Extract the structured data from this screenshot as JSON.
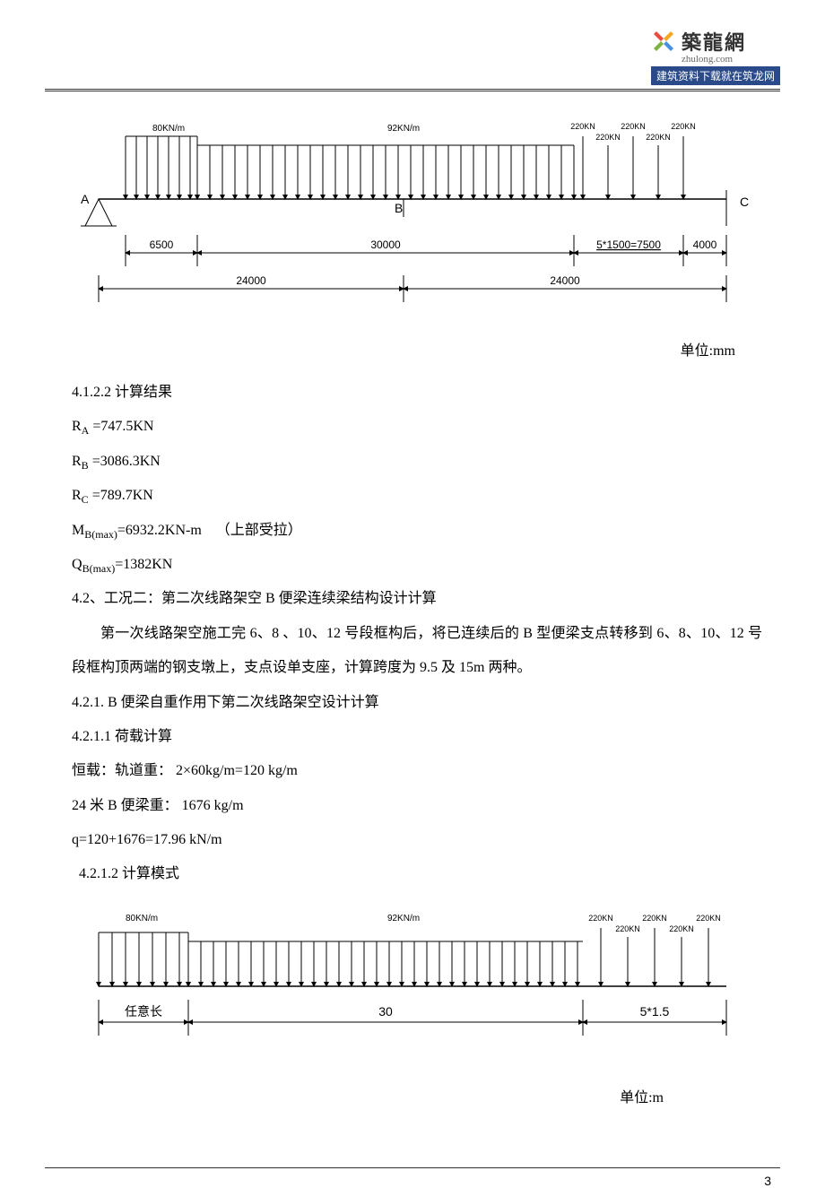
{
  "logo": {
    "cn": "築龍網",
    "url": "zhulong.com",
    "banner": "建筑资料下载就在筑龙网",
    "petal_colors": [
      "#f5a623",
      "#4a90e2",
      "#7cb342",
      "#e94b3c"
    ]
  },
  "diagram1": {
    "loads": {
      "left": "80KN/m",
      "mid": "92KN/m",
      "point": "220KN"
    },
    "nodes": {
      "A": "A",
      "B": "B",
      "C": "C"
    },
    "dims_top": [
      "6500",
      "30000",
      "5*1500=7500",
      "4000"
    ],
    "dims_bot": [
      "24000",
      "24000"
    ],
    "unit": "单位:mm",
    "colors": {
      "line": "#000",
      "arrow": "#000",
      "text": "#000"
    },
    "fontsize_load": 10,
    "fontsize_dim": 12,
    "fontsize_node": 14
  },
  "results": {
    "heading": "4.1.2.2 计算结果",
    "RA": "RA =747.5KN",
    "RB": "RB =3086.3KN",
    "RC": "RC =789.7KN",
    "MB": "MB(max)=6932.2KN-m    （上部受拉）",
    "QB": "QB(max)=1382KN"
  },
  "sec42": {
    "title": "4.2、工况二：第二次线路架空 B 便梁连续梁结构设计计算",
    "para": "第一次线路架空施工完 6、8 、10、12 号段框构后，将已连续后的 B 型便梁支点转移到 6、8、10、12 号段框构顶两端的钢支墩上，支点设单支座，计算跨度为 9.5 及 15m 两种。",
    "h421": "4.2.1. B 便梁自重作用下第二次线路架空设计计算",
    "h4211": "4.2.1.1 荷载计算",
    "dead": "恒载：轨道重：        2×60kg/m=120 kg/m",
    "beam": "24 米 B 便梁重：  1676 kg/m",
    "q": "q=120+1676=17.96 kN/m",
    "h4212": "4.2.1.2 计算模式"
  },
  "diagram2": {
    "loads": {
      "left": "80KN/m",
      "mid": "92KN/m",
      "point": "220KN"
    },
    "dims": [
      "任意长",
      "30",
      "5*1.5"
    ],
    "unit": "单位:m",
    "colors": {
      "line": "#000"
    },
    "fontsize_load": 10,
    "fontsize_dim": 14
  },
  "page_num": "3"
}
